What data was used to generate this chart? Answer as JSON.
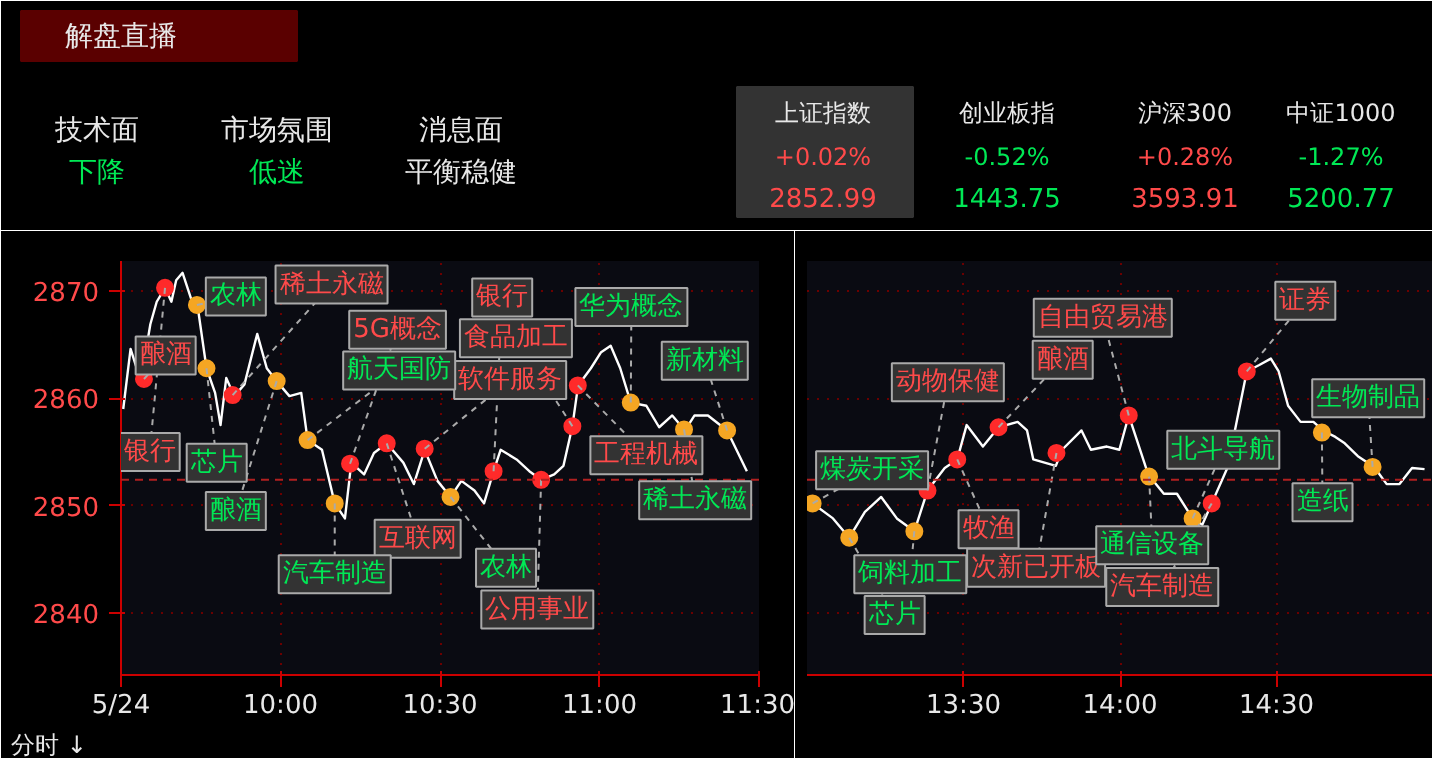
{
  "chart_data": [
    {
      "type": "other",
      "title": "解盘直播",
      "annotations": [
        "技术面",
        "下降",
        "市场氛围",
        "低迷",
        "消息面",
        "平衡稳健",
        "上证指数",
        "+0.02%",
        "2852.99",
        "创业板指",
        "-0.52%",
        "1443.75",
        "沪深300",
        "+0.28%",
        "3593.91",
        "中证1000",
        "-1.27%",
        "5200.77"
      ]
    },
    {
      "type": "line",
      "xlabel": "分时 ↓",
      "x": [
        9.507,
        9.53,
        9.562,
        9.592,
        9.612,
        9.638,
        9.658,
        9.673,
        9.693,
        9.723,
        9.743,
        9.768,
        9.795,
        9.812,
        9.83,
        9.855,
        9.887,
        9.927,
        9.957,
        9.988,
        10.028,
        10.065,
        10.085,
        10.13,
        10.17,
        10.202,
        10.222,
        10.262,
        10.293,
        10.333,
        10.385,
        10.418,
        10.452,
        10.492,
        10.533,
        10.567,
        10.608,
        10.638,
        10.668,
        10.69,
        10.74,
        10.78,
        10.817,
        10.858,
        10.887,
        10.915,
        10.933,
        10.973,
        11.005,
        11.035,
        11.065,
        11.098,
        11.147,
        11.187,
        11.228,
        11.268,
        11.298,
        11.34,
        11.4,
        11.462
      ],
      "series": [
        {
          "type": "line",
          "color": "#ffffff",
          "values": [
            2859.0,
            2864.6,
            2861.6,
            2866.9,
            2869.0,
            2870.3,
            2869.0,
            2871.0,
            2871.7,
            2869.0,
            2868.0,
            2862.8,
            2860.5,
            2857.5,
            2861.9,
            2860.2,
            2861.3,
            2866.0,
            2862.8,
            2861.6,
            2860.2,
            2860.5,
            2856.1,
            2855.2,
            2850.2,
            2848.8,
            2854.0,
            2852.9,
            2854.9,
            2855.8,
            2854.0,
            2852.0,
            2855.2,
            2852.3,
            2850.8,
            2852.3,
            2851.4,
            2850.2,
            2853.2,
            2855.2,
            2854.3,
            2853.2,
            2852.4,
            2852.9,
            2853.7,
            2857.4,
            2861.2,
            2862.8,
            2864.3,
            2864.9,
            2862.8,
            2859.6,
            2859.3,
            2857.3,
            2858.4,
            2857.0,
            2858.4,
            2858.4,
            2857.0,
            2853.2
          ]
        },
        {
          "type": "scatter",
          "color": "#ff2a2a",
          "x": [
            9.572,
            9.638,
            9.85,
            10.218,
            10.333,
            10.452,
            10.668,
            10.817,
            10.915,
            10.932
          ],
          "values": [
            2861.8,
            2870.3,
            2860.3,
            2853.9,
            2855.8,
            2855.3,
            2853.2,
            2852.4,
            2857.4,
            2861.2
          ]
        },
        {
          "type": "scatter",
          "color": "#f5a623",
          "x": [
            9.738,
            9.768,
            9.988,
            10.085,
            10.17,
            10.533,
            11.098,
            11.265,
            11.4
          ],
          "values": [
            2868.7,
            2862.8,
            2861.6,
            2856.1,
            2850.2,
            2850.8,
            2859.6,
            2857.1,
            2857.0
          ]
        }
      ],
      "xlim": [
        9.5,
        11.5
      ],
      "ylim": [
        2834.2,
        2872.8
      ],
      "xticks": [
        {
          "value": 9.5,
          "label": "5/24"
        },
        {
          "value": 10,
          "label": "10:00"
        },
        {
          "value": 10.5,
          "label": "10:30"
        },
        {
          "value": 11,
          "label": "11:00"
        },
        {
          "value": 11.5,
          "label": "11:30"
        }
      ],
      "yticks": [
        2840,
        2850,
        2860,
        2870
      ],
      "grid": true,
      "ref_lines": [
        {
          "axis": "y",
          "value": 2852.4,
          "color": "#b02020",
          "line_style": "dashed"
        }
      ],
      "annotations": [
        {
          "text": "酿酒",
          "x": 9.572,
          "y": 2861.8
        },
        {
          "text": "银行",
          "x": 9.638,
          "y": 2870.3
        },
        {
          "text": "稀土永磁",
          "x": 9.85,
          "y": 2860.3
        },
        {
          "text": "5G概念",
          "x": 10.218,
          "y": 2853.9
        },
        {
          "text": "互联网",
          "x": 10.333,
          "y": 2855.8
        },
        {
          "text": "软件服务",
          "x": 10.452,
          "y": 2855.3
        },
        {
          "text": "银行",
          "x": 10.668,
          "y": 2853.2
        },
        {
          "text": "公用事业",
          "x": 10.817,
          "y": 2852.4
        },
        {
          "text": "食品加工",
          "x": 10.915,
          "y": 2857.4
        },
        {
          "text": "工程机械",
          "x": 10.932,
          "y": 2861.2
        },
        {
          "text": "农林",
          "x": 9.738,
          "y": 2868.7
        },
        {
          "text": "芯片",
          "x": 9.768,
          "y": 2862.8
        },
        {
          "text": "酿酒",
          "x": 9.988,
          "y": 2861.6
        },
        {
          "text": "航天国防",
          "x": 10.085,
          "y": 2856.1
        },
        {
          "text": "汽车制造",
          "x": 10.17,
          "y": 2850.2
        },
        {
          "text": "农林",
          "x": 10.533,
          "y": 2850.8
        },
        {
          "text": "华为概念",
          "x": 11.098,
          "y": 2859.6
        },
        {
          "text": "稀土永磁",
          "x": 11.265,
          "y": 2857.1
        },
        {
          "text": "新材料",
          "x": 11.4,
          "y": 2857.0
        }
      ]
    },
    {
      "type": "line",
      "tick_labels": "x",
      "x": [
        13.018,
        13.083,
        13.135,
        13.185,
        13.237,
        13.287,
        13.343,
        13.385,
        13.44,
        13.48,
        13.51,
        13.562,
        13.612,
        13.673,
        13.703,
        13.723,
        13.795,
        13.815,
        13.877,
        13.907,
        13.958,
        13.998,
        14.028,
        14.09,
        14.14,
        14.182,
        14.232,
        14.263,
        14.293,
        14.343,
        14.405,
        14.445,
        14.482,
        14.507,
        14.537,
        14.577,
        14.618,
        14.648,
        14.688,
        14.718,
        14.76,
        14.812,
        14.852,
        14.893,
        14.933,
        14.973
      ],
      "series": [
        {
          "type": "line",
          "color": "#ffffff",
          "values": [
            2850.2,
            2848.8,
            2847.0,
            2849.4,
            2850.8,
            2848.8,
            2847.6,
            2851.4,
            2853.5,
            2854.3,
            2857.5,
            2855.5,
            2857.3,
            2857.8,
            2857.0,
            2854.3,
            2853.7,
            2855.2,
            2857.0,
            2855.2,
            2855.5,
            2855.2,
            2858.4,
            2852.9,
            2851.1,
            2851.1,
            2848.8,
            2848.2,
            2850.2,
            2853.5,
            2862.5,
            2863.1,
            2863.7,
            2862.5,
            2859.3,
            2857.8,
            2857.8,
            2857.0,
            2856.4,
            2855.8,
            2854.6,
            2853.6,
            2852.0,
            2852.0,
            2853.5,
            2853.4
          ]
        },
        {
          "type": "scatter",
          "color": "#ff2a2a",
          "x": [
            13.385,
            13.48,
            13.612,
            13.797,
            14.028,
            14.293,
            14.405
          ],
          "values": [
            2851.4,
            2854.3,
            2857.3,
            2854.9,
            2858.4,
            2850.2,
            2862.5
          ]
        },
        {
          "type": "scatter",
          "color": "#f5a623",
          "x": [
            13.018,
            13.135,
            13.343,
            14.093,
            14.232,
            14.645,
            14.807
          ],
          "values": [
            2850.2,
            2847.0,
            2847.6,
            2852.7,
            2848.8,
            2856.8,
            2853.6
          ]
        }
      ],
      "xlim": [
        13,
        15
      ],
      "ylim": [
        2834.2,
        2872.8
      ],
      "xticks": [
        {
          "value": 13.5,
          "label": "13:30"
        },
        {
          "value": 14,
          "label": "14:00"
        },
        {
          "value": 14.5,
          "label": "14:30"
        }
      ],
      "yticks": [
        2840,
        2850,
        2860,
        2870
      ],
      "grid": true,
      "ref_lines": [
        {
          "axis": "y",
          "value": 2852.4,
          "color": "#b02020",
          "line_style": "dashed"
        }
      ],
      "annotations": [
        {
          "text": "动物保健",
          "x": 13.385,
          "y": 2851.4
        },
        {
          "text": "牧渔",
          "x": 13.48,
          "y": 2854.3
        },
        {
          "text": "酿酒",
          "x": 13.612,
          "y": 2857.3
        },
        {
          "text": "次新已开板",
          "x": 13.797,
          "y": 2854.9
        },
        {
          "text": "自由贸易港",
          "x": 14.028,
          "y": 2858.4
        },
        {
          "text": "汽车制造",
          "x": 14.293,
          "y": 2850.2
        },
        {
          "text": "证券",
          "x": 14.405,
          "y": 2862.5
        },
        {
          "text": "煤炭开采",
          "x": 13.018,
          "y": 2850.2
        },
        {
          "text": "芯片",
          "x": 13.135,
          "y": 2847.0
        },
        {
          "text": "饲料加工",
          "x": 13.343,
          "y": 2847.6
        },
        {
          "text": "通信设备",
          "x": 14.093,
          "y": 2852.7
        },
        {
          "text": "北斗导航",
          "x": 14.232,
          "y": 2848.8
        },
        {
          "text": "造纸",
          "x": 14.645,
          "y": 2856.8
        },
        {
          "text": "生物制品",
          "x": 14.807,
          "y": 2853.6
        }
      ]
    }
  ]
}
